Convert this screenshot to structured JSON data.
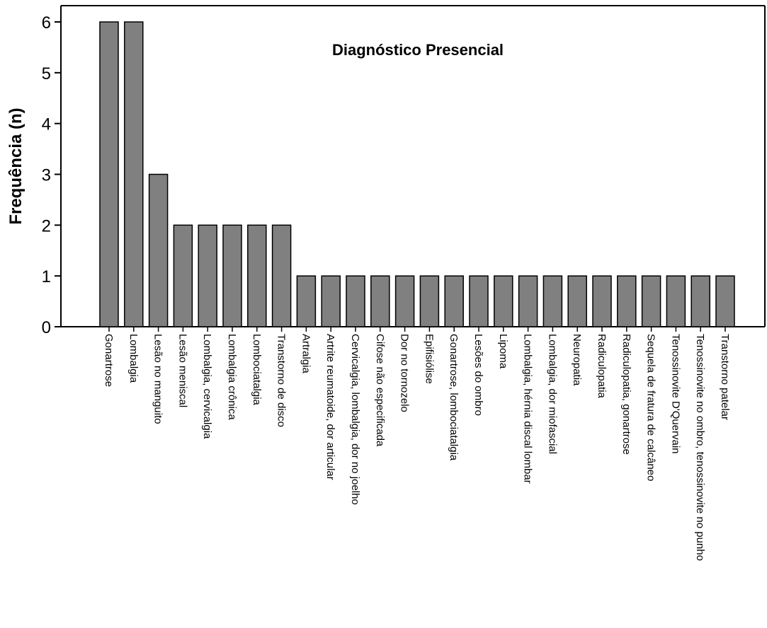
{
  "chart_data": {
    "type": "bar",
    "title": "Diagnóstico Presencial",
    "xlabel": "",
    "ylabel": "Frequência (n)",
    "ylim": [
      0,
      6
    ],
    "yticks": [
      "0",
      "1",
      "2",
      "3",
      "4",
      "5",
      "6"
    ],
    "grid": false,
    "bar_color": "#808080",
    "categories": [
      "Gonartrose",
      "Lombalgia",
      "Lesão no manguito",
      "Lesão meniscal",
      "Lombalgia, cervicalgia",
      "Lombalgia crônica",
      "Lombociatalgia",
      "Transtorno de disco",
      "Artralgia",
      "Artrite reumatoide, dor articular",
      "Cervicalgia, lombalgia, dor no joelho",
      "Cifose não especificada",
      "Dor no tornozelo",
      "Epifisiólise",
      "Gonartrose, lombociatalgia",
      "Lesões do ombro",
      "Lipoma",
      "Lombalgia, hérnia discal lombar",
      "Lombalgia, dor miofascial",
      "Neuropatia",
      "Radiculopatia",
      "Radiculopatia, gonartrose",
      "Sequela de fratura de calcâneo",
      "Tenossinovite D'Quervain",
      "Tenossinovite no ombro, tenossinovite no punho",
      "Transtorno patelar"
    ],
    "values": [
      6,
      6,
      3,
      2,
      2,
      2,
      2,
      2,
      1,
      1,
      1,
      1,
      1,
      1,
      1,
      1,
      1,
      1,
      1,
      1,
      1,
      1,
      1,
      1,
      1,
      1
    ]
  }
}
